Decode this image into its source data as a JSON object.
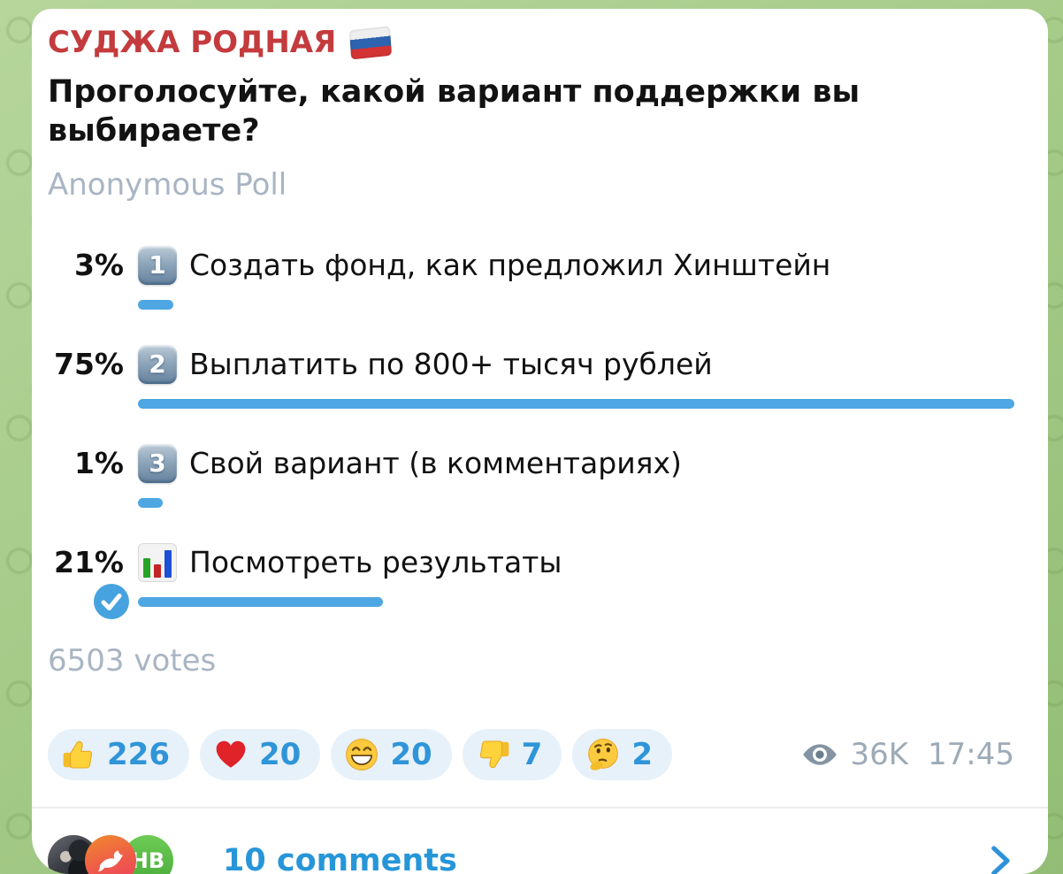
{
  "channel": {
    "name": "СУДЖА РОДНАЯ"
  },
  "poll": {
    "question": "Проголосуйте, какой вариант поддержки вы выбираете?",
    "type_label": "Anonymous Poll",
    "options": [
      {
        "percent": "3%",
        "percent_value": 3,
        "keycap": "1",
        "label": "Создать фонд, как предложил Хинштейн",
        "chosen": false
      },
      {
        "percent": "75%",
        "percent_value": 75,
        "keycap": "2",
        "label": "Выплатить по 800+ тысяч рублей",
        "chosen": false
      },
      {
        "percent": "1%",
        "percent_value": 1,
        "keycap": "3",
        "label": "Свой вариант (в комментариях)",
        "chosen": false
      },
      {
        "percent": "21%",
        "percent_value": 21,
        "keycap": "",
        "label": "Посмотреть результаты",
        "chosen": true
      }
    ],
    "votes_label": "6503 votes"
  },
  "reactions": [
    {
      "emoji": "thumbs-up",
      "count": "226"
    },
    {
      "emoji": "red-heart",
      "count": "20"
    },
    {
      "emoji": "grinning-face",
      "count": "20"
    },
    {
      "emoji": "thumbs-down",
      "count": "7"
    },
    {
      "emoji": "thinking-face",
      "count": "2"
    }
  ],
  "meta": {
    "views": "36K",
    "time": "17:45"
  },
  "comments": {
    "label": "10 comments",
    "avatar_initials": "НВ"
  },
  "colors": {
    "channel_red": "#c43b3d",
    "bar_blue": "#4ea7e2",
    "reaction_blue": "#2f95d8",
    "comments_blue": "#2796d9",
    "muted_gray": "#a9b5c3"
  }
}
